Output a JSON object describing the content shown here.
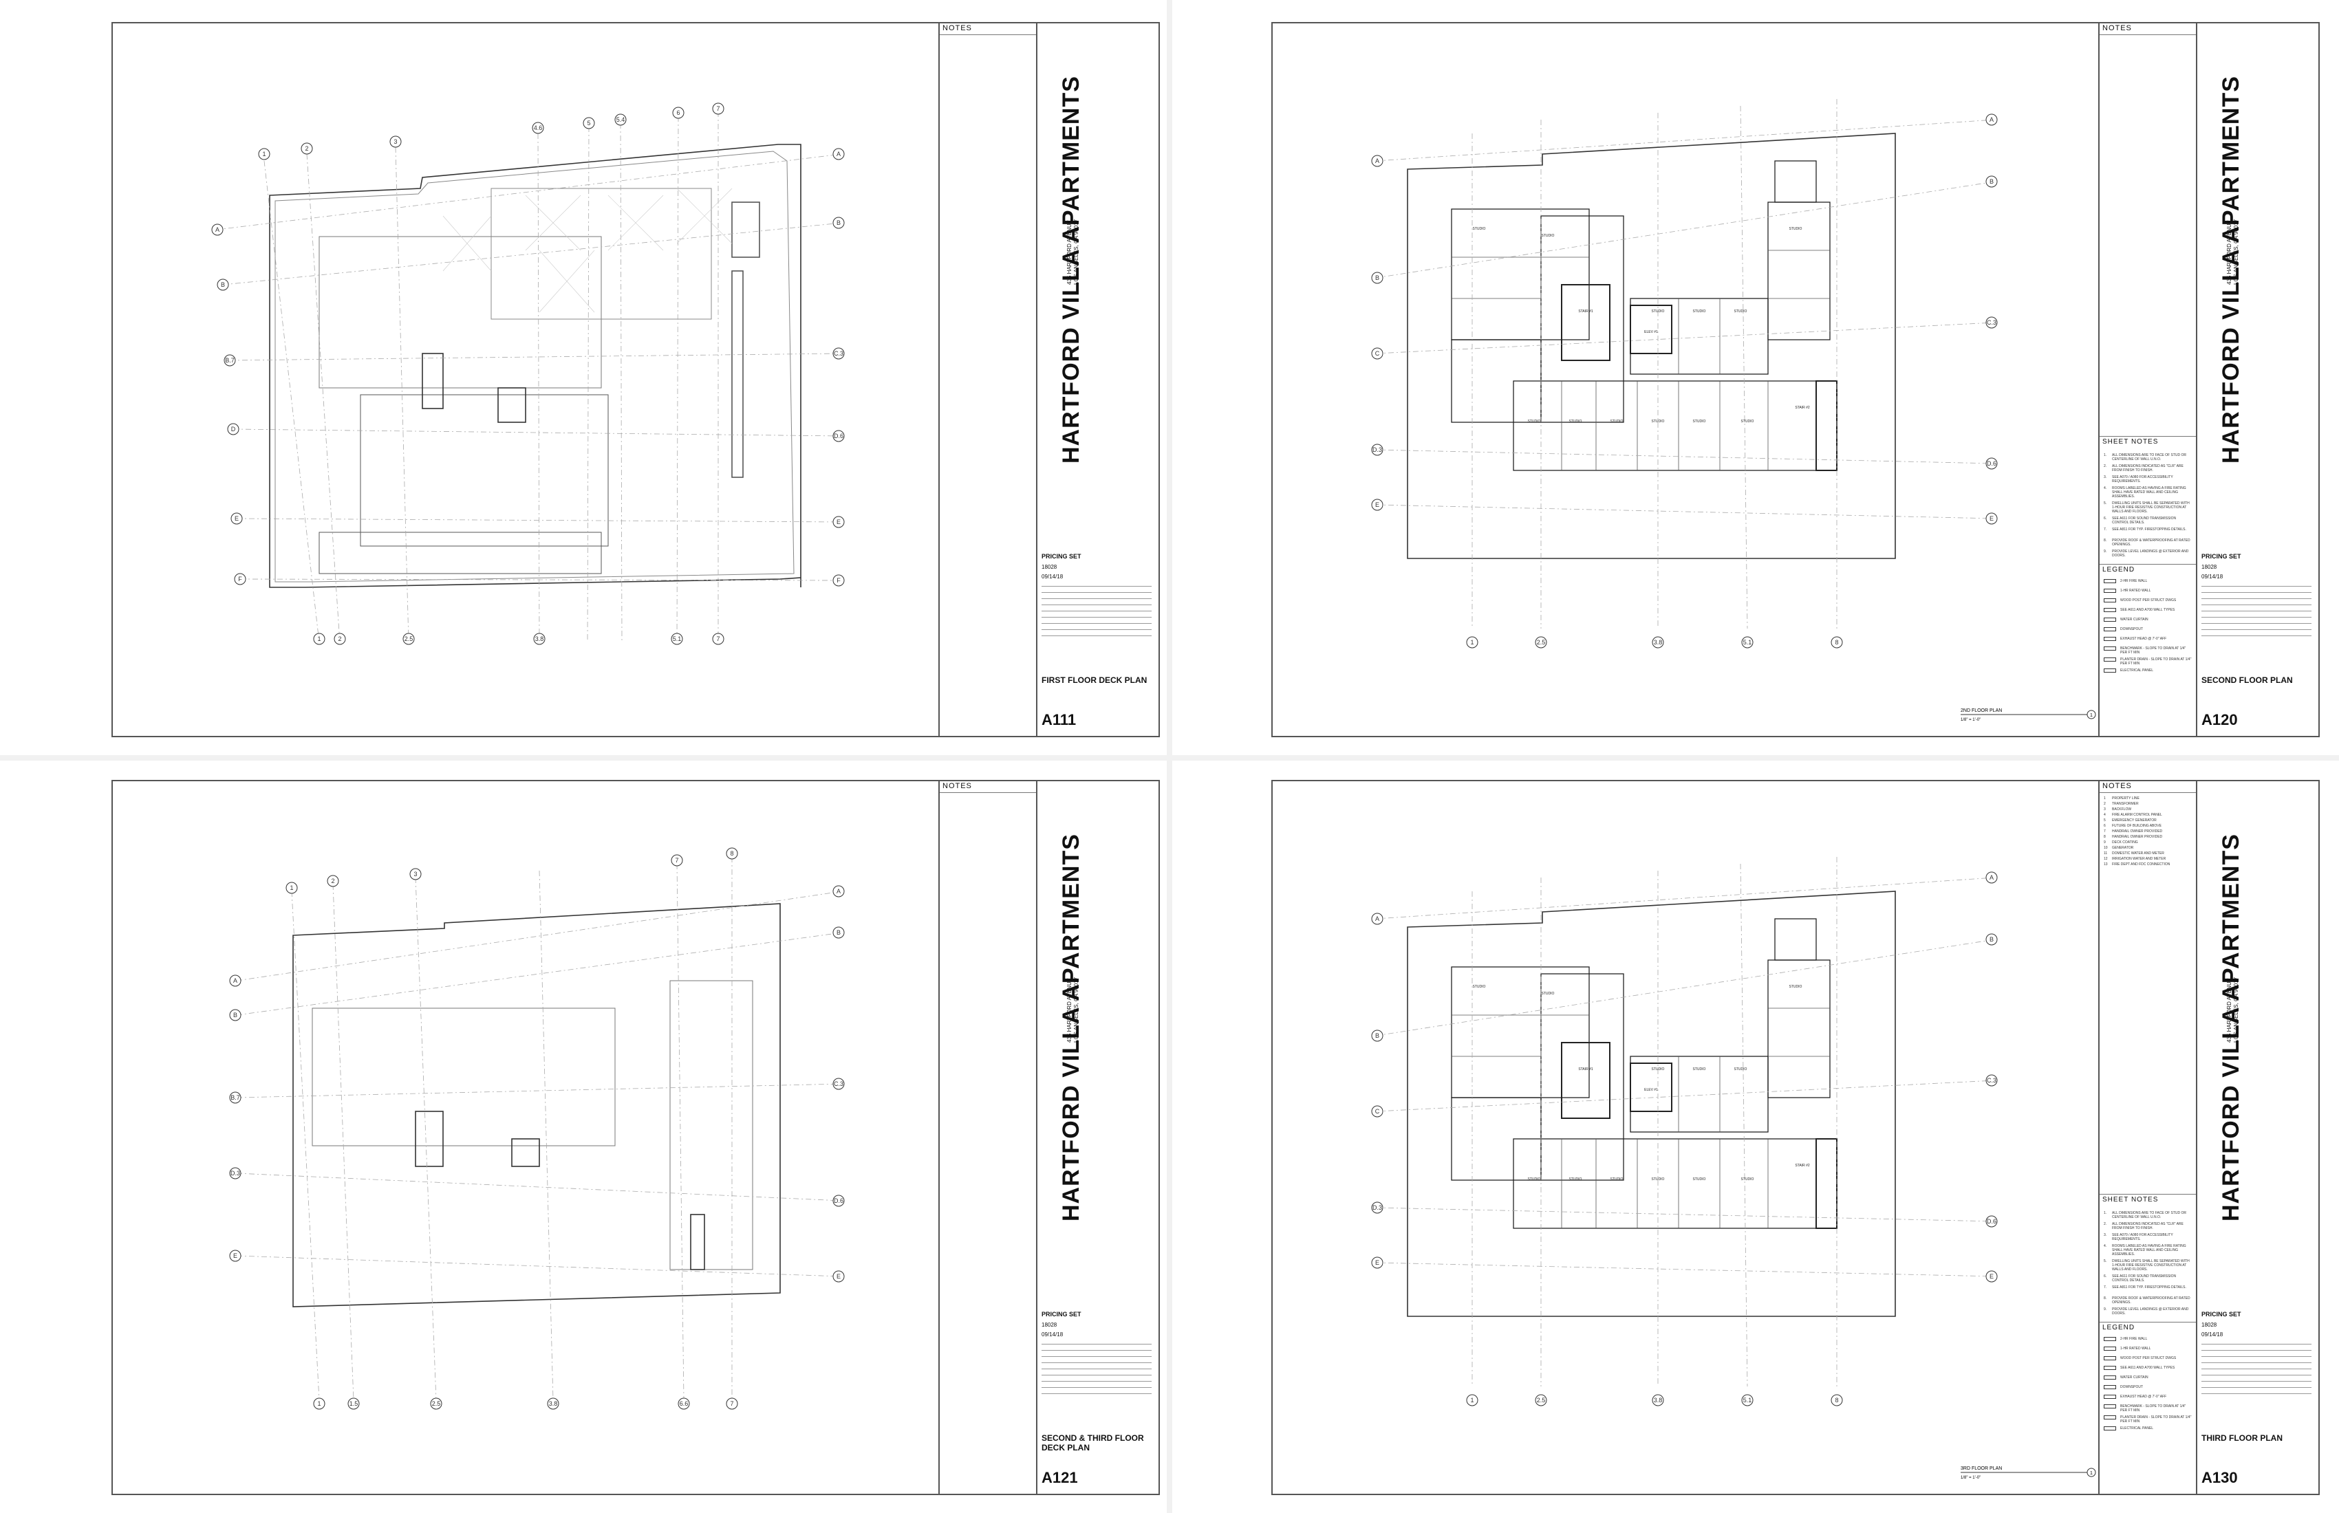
{
  "project": {
    "name": "HARTFORD VILLA APARTMENTS",
    "address_line1": "435 HARTFORD AVENUE",
    "address_line2": "LOS ANGELES, CA 90017",
    "set_label": "PRICING SET",
    "job_no": "18028",
    "date": "09/14/18"
  },
  "sheets": [
    {
      "number": "A111",
      "name": "FIRST FLOOR DECK PLAN",
      "notes_title": "NOTES"
    },
    {
      "number": "A120",
      "name": "SECOND FLOOR PLAN",
      "notes_title": "NOTES",
      "plan_label": "2ND FLOOR PLAN",
      "plan_scale": "1/8\" = 1'-0\"",
      "plan_bubble": "1"
    },
    {
      "number": "A121",
      "name": "SECOND & THIRD FLOOR DECK PLAN",
      "notes_title": "NOTES"
    },
    {
      "number": "A130",
      "name": "THIRD FLOOR PLAN",
      "notes_title": "NOTES",
      "plan_label": "3RD FLOOR PLAN",
      "plan_scale": "1/8\" = 1'-0\"",
      "plan_bubble": "1"
    }
  ],
  "sheet_notes": {
    "title": "SHEET NOTES",
    "items": [
      "ALL DIMENSIONS ARE TO FACE OF STUD OR CENTERLINE OF WALL U.N.O.",
      "ALL DIMENSIONS INDICATED AS \"CLR\" ARE FROM FINISH TO FINISH.",
      "SEE A070 / A080 FOR ACCESSIBILITY REQUIREMENTS.",
      "ROOMS LABELED AS HAVING A FIRE RATING SHALL HAVE RATED WALL AND CEILING ASSEMBLIES.",
      "DWELLING UNITS SHALL BE SEPARATED WITH 1-HOUR FIRE RESISTIVE CONSTRUCTION AT WALLS AND FLOORS.",
      "SEE A611 FOR SOUND TRANSMISSION CONTROL DETAILS.",
      "SEE A811 FOR TYP. FIRESTOPPING DETAILS.",
      "PROVIDE ROOF & WATERPROOFING AT RATED OPENINGS.",
      "PROVIDE LEVEL LANDINGS @ EXTERIOR AND DOORS."
    ]
  },
  "legend": {
    "title": "LEGEND",
    "items": [
      "2-HR FIRE WALL",
      "1-HR RATED WALL",
      "WOOD POST PER STRUCT DWGS",
      "SEE A611 AND A700 WALL TYPES",
      "WATER CURTAIN",
      "DOWNSPOUT",
      "EXHAUST HEAD @ 7'-0\" AFF",
      "BENCHMARK - SLOPE TO DRAIN AT 1/4\" PER FT MIN",
      "PLANTER DRAIN - SLOPE TO DRAIN AT 1/4\" PER FT MIN",
      "ELECTRICAL PANEL"
    ]
  },
  "site_notes": {
    "items": [
      "PROPERTY LINE",
      "TRANSFORMER",
      "BACKFLOW",
      "FIRE ALARM CONTROL PANEL",
      "EMERGENCY GENERATOR",
      "FUTURE OF BUILDING ABOVE",
      "HANDRAIL OWNER PROVIDED",
      "HANDRAIL OWNER PROVIDED",
      "DECK COATING",
      "GENERATOR",
      "DOMESTIC WATER AND METER",
      "IRRIGATION WATER AND METER",
      "FIRE DEPT AND FDC CONNECTION"
    ]
  },
  "grid": {
    "top": [
      "1",
      "2",
      "3",
      "4.6",
      "5",
      "5.4",
      "6",
      "7"
    ],
    "bottom": [
      "1",
      "1.5",
      "2",
      "2.5",
      "3.2",
      "3.8",
      "5.1",
      "6.6",
      "7",
      "8"
    ],
    "left": [
      "A",
      "B",
      "B.7",
      "C",
      "C.1",
      "C.5",
      "D",
      "D.3",
      "E",
      "E.1",
      "E.2",
      "F"
    ],
    "right": [
      "A",
      "B",
      "B.1",
      "C.3",
      "C.6",
      "D.6",
      "E",
      "E.2",
      "F"
    ]
  },
  "units": {
    "label": "STUDIO",
    "ids": [
      "201",
      "202",
      "203",
      "204",
      "205",
      "206",
      "207",
      "208",
      "209",
      "210",
      "211",
      "212",
      "213",
      "214",
      "215",
      "216",
      "217"
    ],
    "stair_labels": [
      "STAIR #1",
      "STAIR #2"
    ],
    "elev": "ELEV #1",
    "corridor": "CORRIDOR"
  }
}
